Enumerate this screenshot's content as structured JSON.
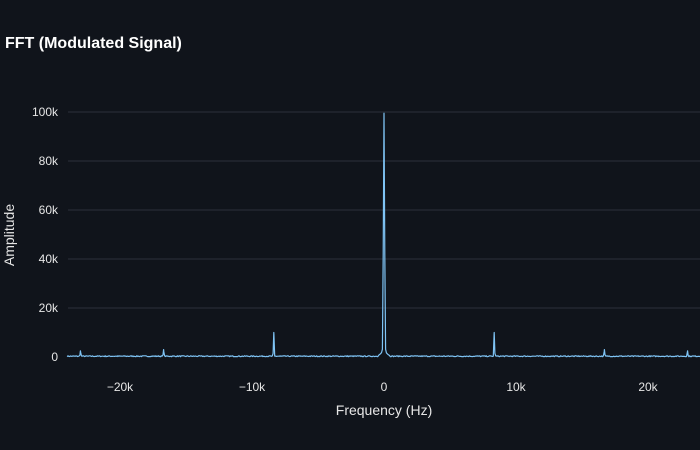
{
  "chart_data": {
    "type": "line",
    "title": "FFT (Modulated Signal)",
    "xlabel": "Frequency (Hz)",
    "ylabel": "Amplitude",
    "xlim": [
      -24000,
      24000
    ],
    "ylim": [
      0,
      100000
    ],
    "x_ticks": [
      -20000,
      -10000,
      0,
      10000,
      20000
    ],
    "x_tick_labels": [
      "−20k",
      "−10k",
      "0",
      "10k",
      "20k"
    ],
    "y_ticks": [
      0,
      20000,
      40000,
      60000,
      80000,
      100000
    ],
    "y_tick_labels": [
      "0",
      "20k",
      "40k",
      "60k",
      "80k",
      "100k"
    ],
    "grid": true,
    "line_color": "#7fc4f5",
    "peaks": [
      {
        "x": -23000,
        "y": 2500
      },
      {
        "x": -16700,
        "y": 3000
      },
      {
        "x": -8350,
        "y": 10000
      },
      {
        "x": 0,
        "y": 99500
      },
      {
        "x": 8350,
        "y": 10000
      },
      {
        "x": 16700,
        "y": 3000
      },
      {
        "x": 23000,
        "y": 2500
      }
    ],
    "noise_floor": 400
  }
}
